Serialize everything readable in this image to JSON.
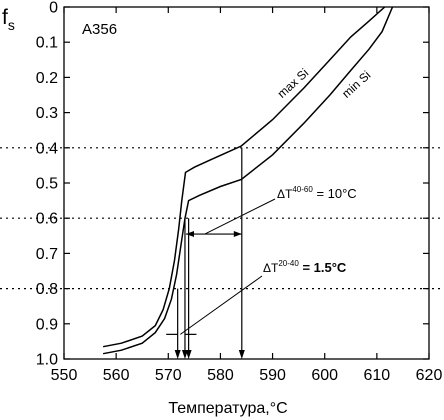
{
  "chart_data": {
    "type": "line",
    "ylabel": "f",
    "ylabel_sub": "s",
    "xlabel": "Температура,°C",
    "alloy_label": "A356",
    "xlim": [
      550,
      620
    ],
    "ylim": [
      0,
      1.0
    ],
    "y_inverted": true,
    "x_ticks": [
      550,
      560,
      570,
      580,
      590,
      600,
      610,
      620
    ],
    "x_tick_labels": [
      "550",
      "560",
      "570",
      "580",
      "590",
      "600",
      "610",
      "620"
    ],
    "y_ticks": [
      0,
      0.1,
      0.2,
      0.3,
      0.4,
      0.5,
      0.6,
      0.7,
      0.8,
      0.9,
      1.0
    ],
    "y_tick_labels": [
      "0",
      "0.1",
      "0.2",
      "0.3",
      "0.4",
      "0.5",
      "0.6",
      "0.7",
      "0.8",
      "0.9",
      "1.0"
    ],
    "reference_lines_y": [
      0.4,
      0.6,
      0.8
    ],
    "series": [
      {
        "name": "max Si",
        "points": [
          [
            557.5,
            0.965
          ],
          [
            561,
            0.955
          ],
          [
            565,
            0.935
          ],
          [
            567.5,
            0.905
          ],
          [
            569,
            0.86
          ],
          [
            570.2,
            0.8
          ],
          [
            571.2,
            0.72
          ],
          [
            572,
            0.63
          ],
          [
            572.6,
            0.55
          ],
          [
            573.3,
            0.47
          ],
          [
            575,
            0.455
          ],
          [
            578,
            0.435
          ],
          [
            581,
            0.415
          ],
          [
            584,
            0.395
          ],
          [
            590,
            0.32
          ],
          [
            596,
            0.23
          ],
          [
            601,
            0.15
          ],
          [
            605,
            0.085
          ],
          [
            608.5,
            0.04
          ],
          [
            611.5,
            0.0
          ]
        ]
      },
      {
        "name": "min Si",
        "points": [
          [
            557.5,
            0.985
          ],
          [
            561,
            0.975
          ],
          [
            565,
            0.955
          ],
          [
            567.5,
            0.925
          ],
          [
            569.3,
            0.885
          ],
          [
            570.6,
            0.83
          ],
          [
            571.6,
            0.76
          ],
          [
            572.5,
            0.67
          ],
          [
            573.2,
            0.6
          ],
          [
            573.9,
            0.55
          ],
          [
            576,
            0.535
          ],
          [
            580,
            0.51
          ],
          [
            584,
            0.49
          ],
          [
            590,
            0.42
          ],
          [
            596,
            0.33
          ],
          [
            601,
            0.25
          ],
          [
            605,
            0.18
          ],
          [
            608.5,
            0.12
          ],
          [
            611,
            0.07
          ],
          [
            613,
            0.0
          ]
        ]
      }
    ],
    "annotations": {
      "dt_40_60": {
        "prefix": "ΔT",
        "sup": "40-60",
        "value": " = 10°C"
      },
      "dt_20_40": {
        "prefix": "ΔT",
        "sup": "20-40",
        "value": " = 1.5°C"
      }
    },
    "drop_lines_x": [
      571.8,
      573.2,
      573.9,
      584.1
    ],
    "drop_lines_from_y": [
      0.8,
      0.6,
      0.6,
      0.4
    ]
  }
}
